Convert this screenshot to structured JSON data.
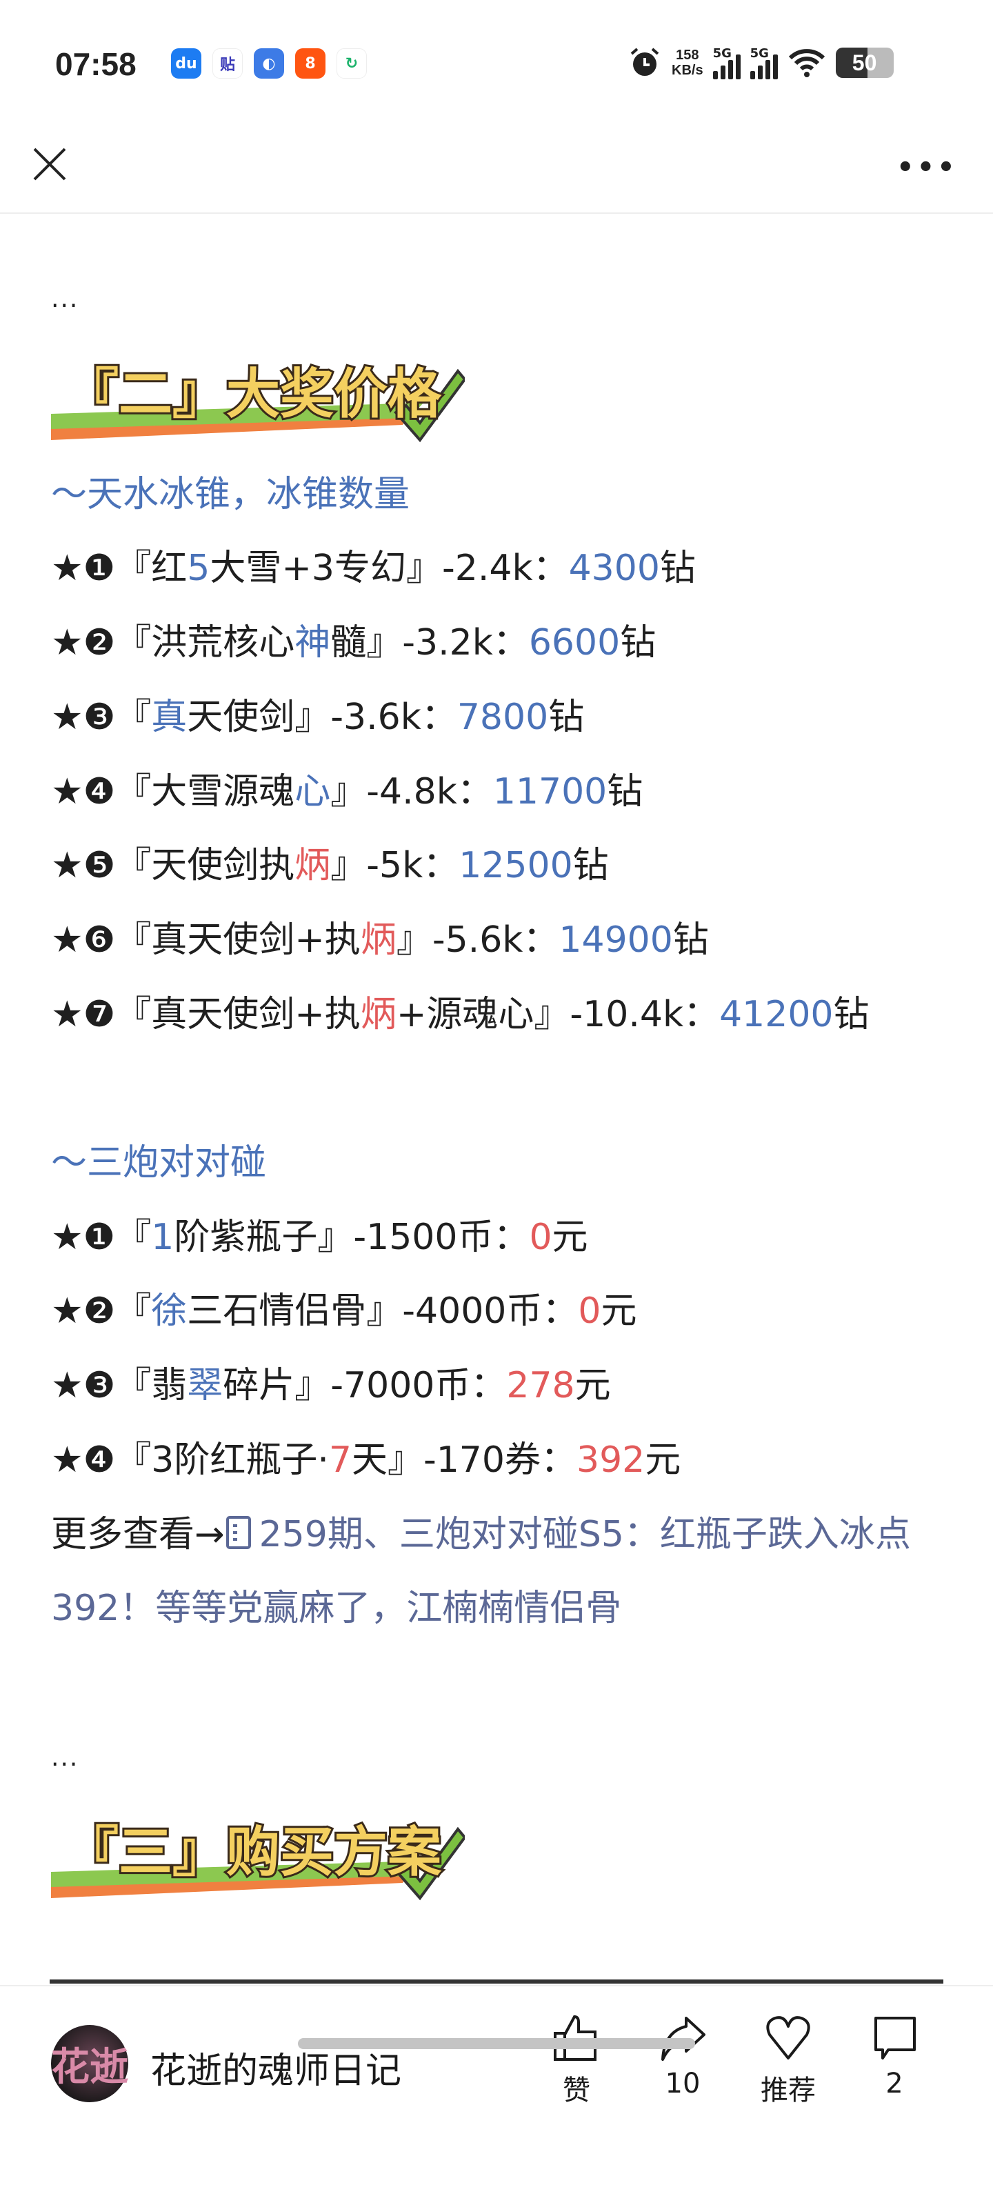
{
  "status_bar": {
    "time": "07:58",
    "net_speed": "158",
    "net_unit": "KB/s",
    "sig1": "5G",
    "sig2": "5G",
    "battery": "50",
    "app_icons": [
      "du-icon",
      "tieba-icon",
      "browser-icon",
      "kuaishou-icon",
      "refresh-icon"
    ]
  },
  "header": {
    "close_icon": "close-icon",
    "more_icon": "more-icon"
  },
  "colors": {
    "blue": "#4a72b8",
    "red": "#e25a5a",
    "link": "#5b6896",
    "text": "#1f1f1f"
  },
  "article": {
    "ellipsis1": "...",
    "banner1": "『二』大奖价格",
    "section1_title": "～天水冰锥，冰锥数量",
    "section1_items": [
      [
        {
          "t": "★❶『红"
        },
        {
          "t": "5",
          "c": "b"
        },
        {
          "t": "大雪+3专幻』-2.4k："
        },
        {
          "t": "4300",
          "c": "b"
        },
        {
          "t": "钻"
        }
      ],
      [
        {
          "t": "★❷『洪荒核心"
        },
        {
          "t": "神",
          "c": "b"
        },
        {
          "t": "髓』-3.2k："
        },
        {
          "t": "6600",
          "c": "b"
        },
        {
          "t": "钻"
        }
      ],
      [
        {
          "t": "★❸『"
        },
        {
          "t": "真",
          "c": "b"
        },
        {
          "t": "天使剑』-3.6k："
        },
        {
          "t": "7800",
          "c": "b"
        },
        {
          "t": "钻"
        }
      ],
      [
        {
          "t": "★❹『大雪源魂"
        },
        {
          "t": "心",
          "c": "b"
        },
        {
          "t": "』-4.8k："
        },
        {
          "t": "11700",
          "c": "b"
        },
        {
          "t": "钻"
        }
      ],
      [
        {
          "t": "★❺『天使剑执"
        },
        {
          "t": "炳",
          "c": "r"
        },
        {
          "t": "』-5k："
        },
        {
          "t": "12500",
          "c": "b"
        },
        {
          "t": "钻"
        }
      ],
      [
        {
          "t": "★❻『真天使剑+执"
        },
        {
          "t": "炳",
          "c": "r"
        },
        {
          "t": "』-5.6k："
        },
        {
          "t": "14900",
          "c": "b"
        },
        {
          "t": "钻"
        }
      ],
      [
        {
          "t": "★❼『真天使剑+执"
        },
        {
          "t": "炳",
          "c": "r"
        },
        {
          "t": "+源魂心』-10.4k："
        },
        {
          "t": "41200",
          "c": "b"
        },
        {
          "t": "钻"
        }
      ]
    ],
    "section2_title": "～三炮对对碰",
    "section2_items": [
      [
        {
          "t": "★❶『"
        },
        {
          "t": "1",
          "c": "b"
        },
        {
          "t": "阶紫瓶子』-1500币："
        },
        {
          "t": "0",
          "c": "r"
        },
        {
          "t": "元"
        }
      ],
      [
        {
          "t": "★❷『"
        },
        {
          "t": "徐",
          "c": "b"
        },
        {
          "t": "三石情侣骨』-4000币："
        },
        {
          "t": "0",
          "c": "r"
        },
        {
          "t": "元"
        }
      ],
      [
        {
          "t": "★❸『翡"
        },
        {
          "t": "翠",
          "c": "b"
        },
        {
          "t": "碎片』-7000币："
        },
        {
          "t": "278",
          "c": "r"
        },
        {
          "t": "元"
        }
      ],
      [
        {
          "t": "★❹『3阶红瓶子·"
        },
        {
          "t": "7",
          "c": "r"
        },
        {
          "t": "天』-170券："
        },
        {
          "t": "392",
          "c": "r"
        },
        {
          "t": "元"
        }
      ]
    ],
    "more_prefix": "更多查看→",
    "more_link_icon": "document-icon",
    "more_link": "259期、三炮对对碰S5：红瓶子跌入冰点392！等等党赢麻了，江楠楠情侣骨",
    "ellipsis2": "...",
    "banner2": "『三』购买方案"
  },
  "bottom_bar": {
    "avatar_text": "花逝",
    "author": "花逝的魂师日记",
    "actions": [
      {
        "icon": "thumbs-up-icon",
        "label": "赞"
      },
      {
        "icon": "share-icon",
        "label": "10"
      },
      {
        "icon": "heart-icon",
        "label": "推荐"
      },
      {
        "icon": "comment-icon",
        "label": "2"
      }
    ]
  }
}
